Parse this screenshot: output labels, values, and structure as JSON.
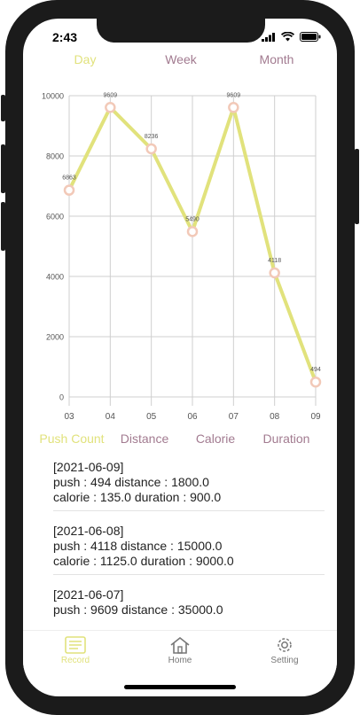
{
  "status": {
    "time": "2:43"
  },
  "period_tabs": [
    "Day",
    "Week",
    "Month"
  ],
  "metric_tabs": [
    "Push Count",
    "Distance",
    "Calorie",
    "Duration"
  ],
  "chart_data": {
    "type": "line",
    "categories": [
      "03",
      "04",
      "05",
      "06",
      "07",
      "08",
      "09"
    ],
    "values": [
      6863,
      9609,
      8236,
      5490,
      9609,
      4118,
      494
    ],
    "value_labels": [
      "6863",
      "9609",
      "8236",
      "5490",
      "9609",
      "4118",
      "494"
    ],
    "yticks": [
      "0",
      "2000",
      "4000",
      "6000",
      "8000",
      "10000"
    ],
    "ylim": [
      0,
      10000
    ],
    "line_color": "#e1e27c",
    "grid": true
  },
  "records": [
    {
      "date": "[2021-06-09]",
      "line1": "push : 494 distance : 1800.0",
      "line2": "calorie : 135.0 duration : 900.0"
    },
    {
      "date": "[2021-06-08]",
      "line1": "push : 4118 distance : 15000.0",
      "line2": "calorie : 1125.0 duration : 9000.0"
    },
    {
      "date": "[2021-06-07]",
      "line1": "push : 9609 distance : 35000.0",
      "line2": ""
    }
  ],
  "tabbar": {
    "record": "Record",
    "home": "Home",
    "setting": "Setting"
  },
  "colors": {
    "accent": "#e1e27c",
    "secondary": "#a27b90"
  },
  "icons": {
    "record": "record-icon",
    "home": "home-icon",
    "setting": "gear-icon"
  }
}
